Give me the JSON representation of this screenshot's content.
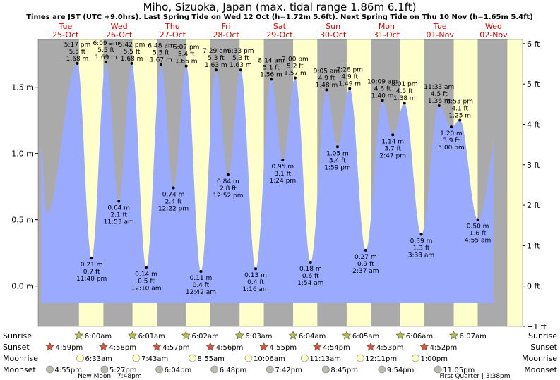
{
  "chart_data": {
    "type": "area",
    "title": "Miho, Sizuoka, Japan (max. tidal range 1.86m 6.1ft)",
    "subtitle": "Times are JST (UTC +9.0hrs). Last Spring Tide on Wed 12 Oct (h=1.72m 5.6ft). Next Spring Tide on Thu 10 Nov (h=1.65m 5.4ft)",
    "xlabel": "",
    "ylabel": "",
    "ylim_m": [
      -0.305,
      1.86
    ],
    "y_ticks_m": [
      "1.5 m",
      "1.0 m",
      "0.5 m",
      "0.0 m"
    ],
    "y_ticks_m_values": [
      1.5,
      1.0,
      0.5,
      0.0
    ],
    "y_ticks_ft": [
      "6 ft",
      "5 ft",
      "4 ft",
      "3 ft",
      "2 ft",
      "1 ft",
      "0 ft",
      "−1 ft"
    ],
    "y_ticks_ft_values": [
      6,
      5,
      4,
      3,
      2,
      1,
      0,
      -1
    ],
    "x_range_hours": [
      -12.3,
      205
    ],
    "day_labels": [
      {
        "day": "Tue",
        "date": "25-Oct"
      },
      {
        "day": "Wed",
        "date": "26-Oct"
      },
      {
        "day": "Thu",
        "date": "27-Oct"
      },
      {
        "day": "Fri",
        "date": "28-Oct"
      },
      {
        "day": "Sat",
        "date": "29-Oct"
      },
      {
        "day": "Sun",
        "date": "30-Oct"
      },
      {
        "day": "Mon",
        "date": "31-Oct"
      },
      {
        "day": "Tue",
        "date": "01-Nov"
      },
      {
        "day": "Wed",
        "date": "02-Nov"
      }
    ],
    "night_periods": [
      {
        "start": -12.3,
        "end": 6.0
      },
      {
        "start": 16.98,
        "end": 30.02
      },
      {
        "start": 40.97,
        "end": 54.03
      },
      {
        "start": 64.95,
        "end": 78.05
      },
      {
        "start": 88.93,
        "end": 102.07
      },
      {
        "start": 112.92,
        "end": 126.1
      },
      {
        "start": 136.9,
        "end": 150.13
      },
      {
        "start": 160.88,
        "end": 174.13
      },
      {
        "start": 184.87,
        "end": 198.15
      }
    ],
    "tide_events": [
      {
        "t": 5.28,
        "h": 1.68,
        "lines": [
          "5:17 pm",
          "5.5 ft",
          "1.68 m"
        ],
        "type": "high"
      },
      {
        "t": 11.67,
        "h": 0.21,
        "lines": [
          "0.21 m",
          "0.7 ft",
          "11:40 pm"
        ],
        "type": "low"
      },
      {
        "t": 18.15,
        "h": 1.69,
        "lines": [
          "6:09 am",
          "5.5 ft",
          "1.69 m"
        ],
        "type": "high"
      },
      {
        "t": 23.88,
        "h": 0.64,
        "lines": [
          "0.64 m",
          "2.1 ft",
          "11:53 am"
        ],
        "type": "low"
      },
      {
        "t": 29.7,
        "h": 1.68,
        "lines": [
          "5:42 pm",
          "5.5 ft",
          "1.68 m"
        ],
        "type": "high"
      },
      {
        "t": 36.17,
        "h": 0.14,
        "lines": [
          "0.14 m",
          "0.5 ft",
          "12:10 am"
        ],
        "type": "low"
      },
      {
        "t": 42.8,
        "h": 1.67,
        "lines": [
          "6:48 am",
          "5.5 ft",
          "1.67 m"
        ],
        "type": "high"
      },
      {
        "t": 48.37,
        "h": 0.74,
        "lines": [
          "0.74 m",
          "2.4 ft",
          "12:22 pm"
        ],
        "type": "low"
      },
      {
        "t": 54.12,
        "h": 1.66,
        "lines": [
          "6:07 pm",
          "5.4 ft",
          "1.66 m"
        ],
        "type": "high"
      },
      {
        "t": 60.7,
        "h": 0.11,
        "lines": [
          "0.11 m",
          "0.4 ft",
          "12:42 am"
        ],
        "type": "low"
      },
      {
        "t": 67.48,
        "h": 1.63,
        "lines": [
          "7:29 am",
          "5.3 ft",
          "1.63 m"
        ],
        "type": "high"
      },
      {
        "t": 72.87,
        "h": 0.84,
        "lines": [
          "0.84 m",
          "2.8 ft",
          "12:52 pm"
        ],
        "type": "low"
      },
      {
        "t": 78.55,
        "h": 1.63,
        "lines": [
          "6:33 pm",
          "5.3 ft",
          "1.63 m"
        ],
        "type": "high"
      },
      {
        "t": 85.27,
        "h": 0.13,
        "lines": [
          "0.13 m",
          "0.4 ft",
          "1:16 am"
        ],
        "type": "low"
      },
      {
        "t": 92.23,
        "h": 1.56,
        "lines": [
          "8:14 am",
          "5.1 ft",
          "1.56 m"
        ],
        "type": "high"
      },
      {
        "t": 97.4,
        "h": 0.95,
        "lines": [
          "0.95 m",
          "3.1 ft",
          "1:24 pm"
        ],
        "type": "low"
      },
      {
        "t": 103.0,
        "h": 1.57,
        "lines": [
          "7:00 pm",
          "5.2 ft",
          "1.57 m"
        ],
        "type": "high"
      },
      {
        "t": 109.9,
        "h": 0.18,
        "lines": [
          "0.18 m",
          "0.6 ft",
          "1:54 am"
        ],
        "type": "low"
      },
      {
        "t": 117.08,
        "h": 1.48,
        "lines": [
          "9:05 am",
          "4.9 ft",
          "1.48 m"
        ],
        "type": "high"
      },
      {
        "t": 121.98,
        "h": 1.05,
        "lines": [
          "1.05 m",
          "3.4 ft",
          "1:59 pm"
        ],
        "type": "low"
      },
      {
        "t": 127.47,
        "h": 1.49,
        "lines": [
          "7:28 pm",
          "4.9 ft",
          "1.49 m"
        ],
        "type": "high"
      },
      {
        "t": 134.62,
        "h": 0.27,
        "lines": [
          "0.27 m",
          "0.9 ft",
          "2:37 am"
        ],
        "type": "low"
      },
      {
        "t": 142.15,
        "h": 1.4,
        "lines": [
          "10:09 am",
          "4.6 ft",
          "1.40 m"
        ],
        "type": "high"
      },
      {
        "t": 146.78,
        "h": 1.14,
        "lines": [
          "1.14 m",
          "3.7 ft",
          "2:47 pm"
        ],
        "type": "low"
      },
      {
        "t": 152.02,
        "h": 1.38,
        "lines": [
          "8:01 pm",
          "4.5 ft",
          "1.38 m"
        ],
        "type": "high"
      },
      {
        "t": 159.55,
        "h": 0.39,
        "lines": [
          "0.39 m",
          "1.3 ft",
          "3:33 am"
        ],
        "type": "low"
      },
      {
        "t": 167.55,
        "h": 1.36,
        "lines": [
          "11:33 am",
          "4.5 ft",
          "1.36 m"
        ],
        "type": "high"
      },
      {
        "t": 173.0,
        "h": 1.2,
        "lines": [
          "1.20 m",
          "3.9 ft",
          "5:00 pm"
        ],
        "type": "low"
      },
      {
        "t": 176.88,
        "h": 1.25,
        "lines": [
          "8:53 pm",
          "4.1 ft",
          "1.25 m"
        ],
        "type": "high"
      },
      {
        "t": 184.92,
        "h": 0.5,
        "lines": [
          "0.50 m",
          "1.6 ft",
          "4:55 am"
        ],
        "type": "low"
      }
    ],
    "row_labels": [
      "Sunrise",
      "Sunset",
      "Moonrise",
      "Moonset"
    ],
    "sunrise": [
      {
        "t": 6.0,
        "label": "6:00am"
      },
      {
        "t": 30.02,
        "label": "6:01am"
      },
      {
        "t": 54.03,
        "label": "6:02am"
      },
      {
        "t": 78.05,
        "label": "6:03am"
      },
      {
        "t": 102.07,
        "label": "6:04am"
      },
      {
        "t": 126.1,
        "label": "6:05am"
      },
      {
        "t": 150.13,
        "label": "6:06am"
      },
      {
        "t": 174.13,
        "label": "6:07am"
      }
    ],
    "sunset": [
      {
        "t": -7.02,
        "label": "4:59pm"
      },
      {
        "t": 16.97,
        "label": "4:58pm"
      },
      {
        "t": 40.95,
        "label": "4:57pm"
      },
      {
        "t": 64.93,
        "label": "4:56pm"
      },
      {
        "t": 88.92,
        "label": "4:55pm"
      },
      {
        "t": 112.9,
        "label": "4:54pm"
      },
      {
        "t": 136.88,
        "label": "4:53pm"
      },
      {
        "t": 160.87,
        "label": "4:52pm"
      }
    ],
    "moonrise": [
      {
        "t": 6.55,
        "label": "6:33am"
      },
      {
        "t": 31.72,
        "label": "7:43am"
      },
      {
        "t": 56.92,
        "label": "8:55am"
      },
      {
        "t": 82.1,
        "label": "10:06am"
      },
      {
        "t": 107.22,
        "label": "11:13am"
      },
      {
        "t": 132.2,
        "label": "12:11pm"
      },
      {
        "t": 157.0,
        "label": "1:00pm"
      }
    ],
    "moonset": [
      {
        "t": -7.08,
        "label": "4:55pm"
      },
      {
        "t": 17.45,
        "label": "5:27pm"
      },
      {
        "t": 42.07,
        "label": "6:04pm"
      },
      {
        "t": 66.8,
        "label": "6:48pm"
      },
      {
        "t": 91.7,
        "label": "7:42pm"
      },
      {
        "t": 116.75,
        "label": "8:45pm"
      },
      {
        "t": 141.9,
        "label": "9:54pm"
      },
      {
        "t": 167.08,
        "label": "11:05pm"
      }
    ],
    "moon_phases": [
      {
        "t": 19.8,
        "label": "New Moon | 7:48pm"
      },
      {
        "t": 183.63,
        "label": "First Quarter | 3:38pm"
      }
    ],
    "colors": {
      "day": "#ffffcc",
      "night": "#aaaaaa",
      "water": "#99aaff",
      "sun": "#bbbb44",
      "sunset": "#dd5533",
      "moonrise": "#ffffcc",
      "moonset": "#bbbbaa"
    }
  }
}
